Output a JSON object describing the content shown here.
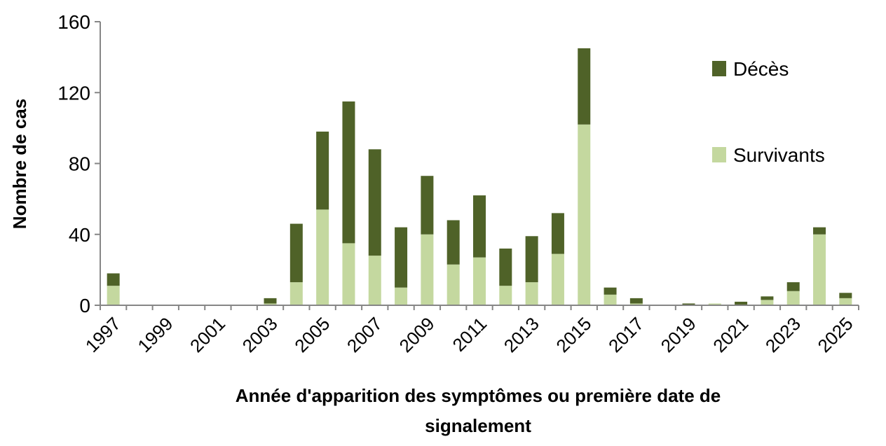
{
  "chart_data": {
    "type": "bar",
    "stacked": true,
    "categories": [
      "1997",
      "1998",
      "1999",
      "2000",
      "2001",
      "2002",
      "2003",
      "2004",
      "2005",
      "2006",
      "2007",
      "2008",
      "2009",
      "2010",
      "2011",
      "2012",
      "2013",
      "2014",
      "2015",
      "2016",
      "2017",
      "2018",
      "2019",
      "2020",
      "2021",
      "2022",
      "2023",
      "2024",
      "2025"
    ],
    "x_tick_labels": [
      "1997",
      "1999",
      "2001",
      "2003",
      "2005",
      "2007",
      "2009",
      "2011",
      "2013",
      "2015",
      "2017",
      "2019",
      "2021",
      "2023",
      "2025"
    ],
    "series": [
      {
        "name": "Survivants",
        "color": "#c4d89f",
        "values": [
          11,
          0,
          0,
          0,
          0,
          0,
          1,
          13,
          54,
          35,
          28,
          10,
          40,
          23,
          27,
          11,
          13,
          29,
          102,
          6,
          1,
          0,
          0,
          1,
          0,
          3,
          8,
          40,
          4
        ]
      },
      {
        "name": "Décès",
        "color": "#4f6228",
        "values": [
          7,
          0,
          0,
          0,
          0,
          0,
          3,
          33,
          44,
          80,
          60,
          34,
          33,
          25,
          35,
          21,
          26,
          23,
          43,
          4,
          3,
          0,
          1,
          0,
          2,
          2,
          5,
          4,
          3
        ]
      }
    ],
    "xlabel": "Année d'apparition des symptômes ou première date de signalement",
    "xlabel_lines": [
      "Année d'apparition des symptômes ou première date de",
      "signalement"
    ],
    "ylabel": "Nombre de cas",
    "ylim": [
      0,
      160
    ],
    "yticks": [
      0,
      40,
      80,
      120,
      160
    ],
    "grid": false,
    "legend": {
      "placement": "right",
      "entries": [
        "Décès",
        "Survivants"
      ]
    }
  }
}
